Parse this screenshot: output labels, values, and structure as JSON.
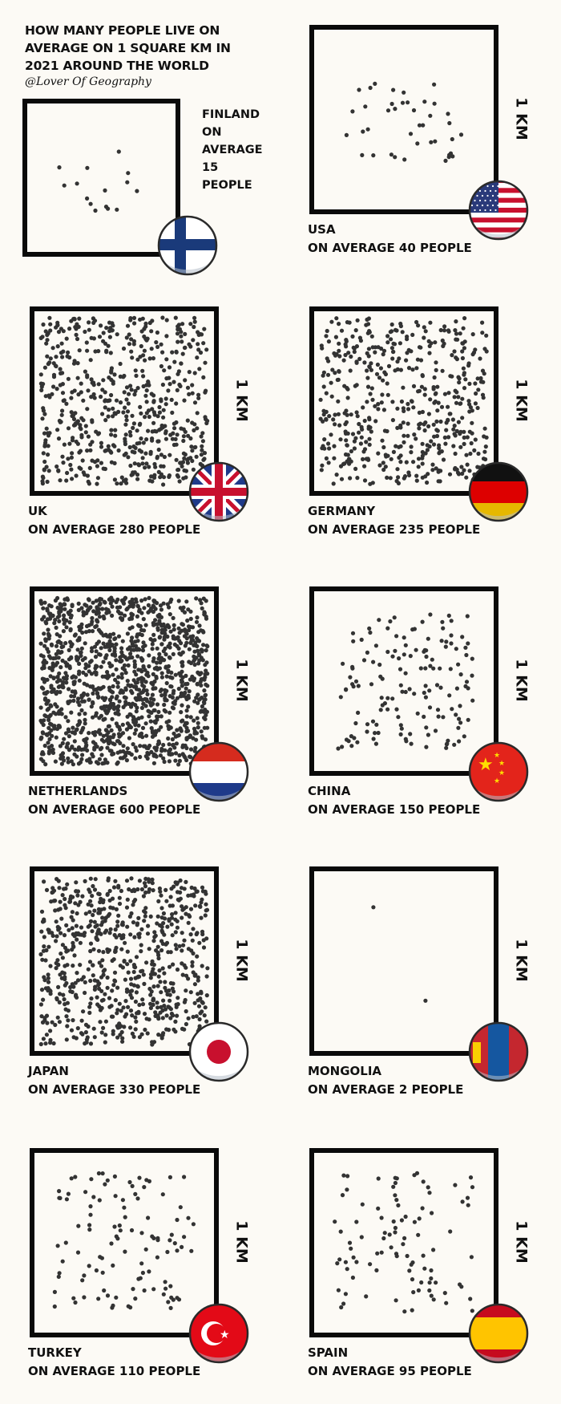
{
  "header": {
    "title_lines": [
      "HOW MANY PEOPLE LIVE ON",
      "AVERAGE ON 1 SQUARE KM IN",
      "2021 AROUND THE WORLD"
    ],
    "credit": "@Lover Of Geography"
  },
  "unit_label": "1 KM",
  "finland": {
    "country": "FINLAND",
    "lines": [
      "ON",
      "AVERAGE",
      "15",
      "PEOPLE"
    ],
    "value": 15,
    "flag": "finland-flag"
  },
  "panels": [
    {
      "country": "USA",
      "caption": "ON AVERAGE 40 PEOPLE",
      "value": 40,
      "flag": "usa-flag"
    },
    {
      "country": "UK",
      "caption": "ON AVERAGE 280 PEOPLE",
      "value": 280,
      "flag": "uk-flag"
    },
    {
      "country": "GERMANY",
      "caption": "ON AVERAGE 235 PEOPLE",
      "value": 235,
      "flag": "germany-flag"
    },
    {
      "country": "NETHERLANDS",
      "caption": "ON AVERAGE 600 PEOPLE",
      "value": 600,
      "flag": "netherlands-flag"
    },
    {
      "country": "CHINA",
      "caption": "ON AVERAGE 150 PEOPLE",
      "value": 150,
      "flag": "china-flag"
    },
    {
      "country": "JAPAN",
      "caption": "ON AVERAGE 330 PEOPLE",
      "value": 330,
      "flag": "japan-flag"
    },
    {
      "country": "MONGOLIA",
      "caption": "ON AVERAGE 2 PEOPLE",
      "value": 2,
      "flag": "mongolia-flag"
    },
    {
      "country": "TURKEY",
      "caption": "ON AVERAGE 110 PEOPLE",
      "value": 110,
      "flag": "turkey-flag"
    },
    {
      "country": "SPAIN",
      "caption": "ON AVERAGE 95 PEOPLE",
      "value": 95,
      "flag": "spain-flag"
    }
  ],
  "colors": {
    "background": "#fcfaf5",
    "frame": "#0a0a0a",
    "dot": "#333333"
  }
}
